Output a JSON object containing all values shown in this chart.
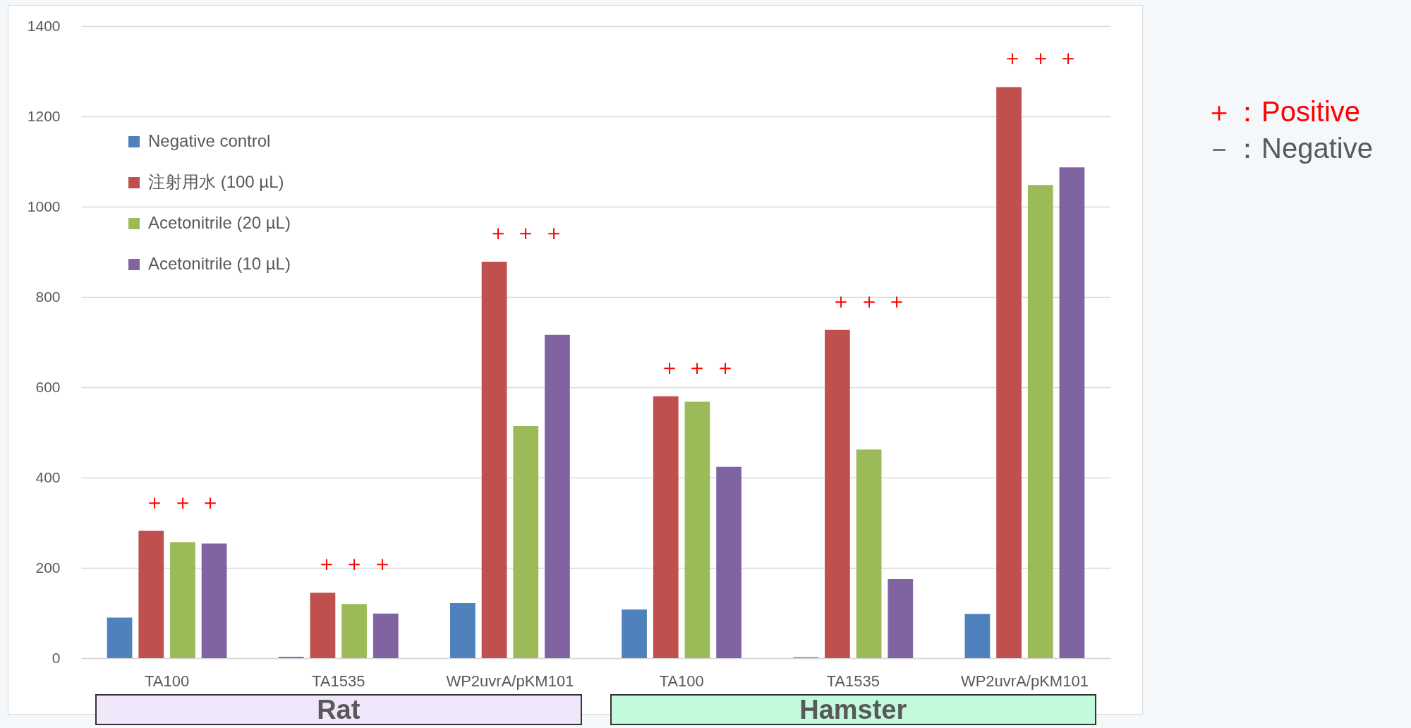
{
  "chart_data": {
    "type": "bar",
    "categories": [
      "TA100",
      "TA1535",
      "WP2uvrA/pKM101",
      "TA100",
      "TA1535",
      "WP2uvrA/pKM101"
    ],
    "series": [
      {
        "name": "Negative control",
        "color": "#4f81bd",
        "values": [
          90,
          3,
          122,
          108,
          2,
          98
        ]
      },
      {
        "name": "注射用水 (100 µL)",
        "color": "#c0504d",
        "values": [
          282,
          145,
          878,
          580,
          727,
          1265
        ]
      },
      {
        "name": "Acetonitrile (20 µL)",
        "color": "#9bbb59",
        "values": [
          257,
          120,
          514,
          568,
          462,
          1048
        ]
      },
      {
        "name": "Acetonitrile (10 µL)",
        "color": "#8064a2",
        "values": [
          254,
          99,
          716,
          424,
          175,
          1087
        ]
      }
    ],
    "ylim": [
      0,
      1400
    ],
    "yticks": [
      0,
      200,
      400,
      600,
      800,
      1000,
      1200,
      1400
    ],
    "grid": "y",
    "legend": "top left",
    "annotations": [
      "＋ ＋ ＋",
      "＋ ＋ ＋",
      "＋ ＋ ＋",
      "＋ ＋ ＋",
      "＋ ＋ ＋",
      "＋ ＋ ＋",
      "＋：Positive",
      "－：Negative",
      "Rat",
      "Hamster"
    ]
  }
}
